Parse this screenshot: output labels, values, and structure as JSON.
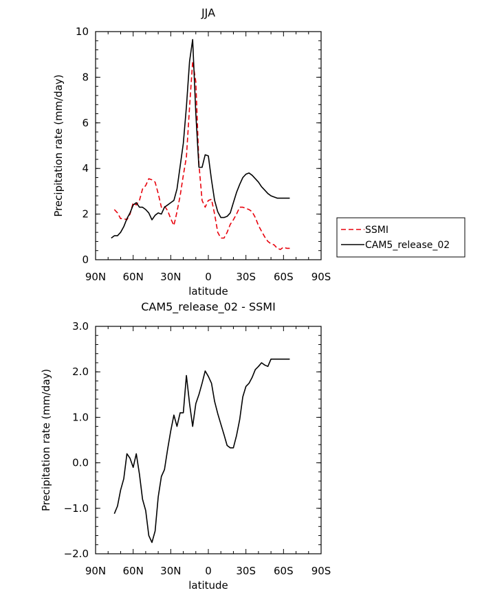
{
  "chart_data": [
    {
      "type": "line",
      "title": "JJA",
      "xlabel": "latitude",
      "ylabel": "Precipitation rate (mm/day)",
      "xlim": [
        90,
        -90
      ],
      "ylim": [
        0,
        10
      ],
      "xticks": [
        90,
        60,
        30,
        0,
        -30,
        -60,
        -90
      ],
      "xtick_labels": [
        "90N",
        "60N",
        "30N",
        "0",
        "30S",
        "60S",
        "90S"
      ],
      "yticks": [
        0,
        2,
        4,
        6,
        8,
        10
      ],
      "ytick_labels": [
        "0",
        "2",
        "4",
        "6",
        "8",
        "10"
      ],
      "legend_position": "right",
      "series": [
        {
          "name": "SSMI",
          "color": "#e8000b",
          "dash": "dashed",
          "x": [
            75,
            72.5,
            70,
            67.5,
            65,
            62.5,
            60,
            57.5,
            55,
            52.5,
            50,
            47.5,
            45,
            42.5,
            40,
            37.5,
            35,
            32.5,
            30,
            27.5,
            25,
            22.5,
            20,
            17.5,
            15,
            12.5,
            10,
            7.5,
            5,
            2.5,
            0,
            -2.5,
            -5,
            -7.5,
            -10,
            -12.5,
            -15,
            -17.5,
            -20,
            -22.5,
            -25,
            -27.5,
            -30,
            -32.5,
            -35,
            -37.5,
            -40,
            -42.5,
            -45,
            -47.5,
            -50,
            -52.5,
            -55,
            -57.5,
            -60,
            -62.5,
            -65
          ],
          "y": [
            2.2,
            2.05,
            1.8,
            1.8,
            1.75,
            2.0,
            2.5,
            2.4,
            2.6,
            3.1,
            3.25,
            3.55,
            3.5,
            3.4,
            2.9,
            2.3,
            2.35,
            2.15,
            1.8,
            1.5,
            2.1,
            2.8,
            3.7,
            4.5,
            6.7,
            8.7,
            7.8,
            4.2,
            2.6,
            2.3,
            2.6,
            2.65,
            2.0,
            1.2,
            0.95,
            0.95,
            1.2,
            1.55,
            1.75,
            2.0,
            2.3,
            2.3,
            2.25,
            2.2,
            2.1,
            1.85,
            1.5,
            1.25,
            1.0,
            0.8,
            0.7,
            0.65,
            0.5,
            0.45,
            0.55,
            0.5,
            0.5
          ]
        },
        {
          "name": "CAM5_release_02",
          "color": "#000000",
          "dash": "solid",
          "x": [
            77.5,
            75,
            72.5,
            70,
            67.5,
            65,
            62.5,
            60,
            57.5,
            55,
            52.5,
            50,
            47.5,
            45,
            42.5,
            40,
            37.5,
            35,
            32.5,
            30,
            27.5,
            25,
            22.5,
            20,
            17.5,
            15,
            12.5,
            10,
            7.5,
            5,
            2.5,
            0,
            -2.5,
            -5,
            -7.5,
            -10,
            -12.5,
            -15,
            -17.5,
            -20,
            -22.5,
            -25,
            -27.5,
            -30,
            -32.5,
            -35,
            -37.5,
            -40,
            -42.5,
            -45,
            -47.5,
            -50,
            -52.5,
            -55,
            -57.5,
            -60,
            -62.5,
            -65
          ],
          "y": [
            0.95,
            1.05,
            1.05,
            1.2,
            1.45,
            1.8,
            2.05,
            2.4,
            2.5,
            2.3,
            2.3,
            2.2,
            2.05,
            1.75,
            1.95,
            2.05,
            2.0,
            2.3,
            2.4,
            2.5,
            2.6,
            3.1,
            4.1,
            5.1,
            6.7,
            8.7,
            9.65,
            6.4,
            4.05,
            4.05,
            4.6,
            4.55,
            3.5,
            2.6,
            2.1,
            1.85,
            1.85,
            1.9,
            2.05,
            2.5,
            2.95,
            3.3,
            3.6,
            3.75,
            3.8,
            3.7,
            3.55,
            3.4,
            3.2,
            3.05,
            2.9,
            2.8,
            2.75,
            2.7,
            2.7,
            2.7,
            2.7,
            2.7
          ]
        }
      ]
    },
    {
      "type": "line",
      "title": "CAM5_release_02 - SSMI",
      "xlabel": "latitude",
      "ylabel": "Precipitation rate (mm/day)",
      "xlim": [
        90,
        -90
      ],
      "ylim": [
        -2.0,
        3.0
      ],
      "xticks": [
        90,
        60,
        30,
        0,
        -30,
        -60,
        -90
      ],
      "xtick_labels": [
        "90N",
        "60N",
        "30N",
        "0",
        "30S",
        "60S",
        "90S"
      ],
      "yticks": [
        -2.0,
        -1.0,
        0.0,
        1.0,
        2.0,
        3.0
      ],
      "ytick_labels": [
        "−2.0",
        "−1.0",
        "0.0",
        "1.0",
        "2.0",
        "3.0"
      ],
      "series": [
        {
          "name": "",
          "color": "#000000",
          "dash": "solid",
          "x": [
            75,
            72.5,
            70,
            67.5,
            65,
            62.5,
            60,
            57.5,
            55,
            52.5,
            50,
            47.5,
            45,
            42.5,
            40,
            37.5,
            35,
            32.5,
            30,
            27.5,
            25,
            22.5,
            20,
            17.5,
            15,
            12.5,
            10,
            7.5,
            5,
            2.5,
            0,
            -2.5,
            -5,
            -7.5,
            -10,
            -12.5,
            -15,
            -17.5,
            -20,
            -22.5,
            -25,
            -27.5,
            -30,
            -32.5,
            -35,
            -37.5,
            -40,
            -42.5,
            -45,
            -47.5,
            -50,
            -52.5,
            -55,
            -57.5,
            -60,
            -62.5,
            -65
          ],
          "y": [
            -1.12,
            -0.95,
            -0.6,
            -0.35,
            0.2,
            0.1,
            -0.1,
            0.2,
            -0.25,
            -0.8,
            -1.05,
            -1.6,
            -1.75,
            -1.5,
            -0.75,
            -0.3,
            -0.15,
            0.3,
            0.7,
            1.05,
            0.8,
            1.1,
            1.1,
            1.92,
            1.3,
            0.8,
            1.3,
            1.5,
            1.75,
            2.02,
            1.9,
            1.75,
            1.35,
            1.08,
            0.85,
            0.62,
            0.38,
            0.33,
            0.33,
            0.6,
            0.95,
            1.45,
            1.68,
            1.75,
            1.88,
            2.05,
            2.12,
            2.2,
            2.15,
            2.12,
            2.28,
            2.28,
            2.28,
            2.28,
            2.28,
            2.28,
            2.28
          ]
        }
      ]
    }
  ]
}
